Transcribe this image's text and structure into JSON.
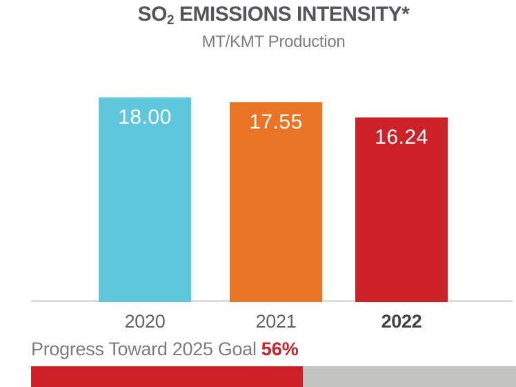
{
  "title": {
    "prefix": "SO",
    "subscript": "2",
    "suffix": " EMISSIONS INTENSITY*"
  },
  "subtitle": "MT/KMT Production",
  "chart_data": {
    "type": "bar",
    "title": "SO2 EMISSIONS INTENSITY*",
    "subtitle": "MT/KMT Production",
    "xlabel": "",
    "ylabel": "MT/KMT Production",
    "categories": [
      "2020",
      "2021",
      "2022"
    ],
    "values": [
      18.0,
      17.55,
      16.24
    ],
    "value_labels": [
      "18.00",
      "17.55",
      "16.24"
    ],
    "bar_colors": [
      "#5EC7DB",
      "#E87424",
      "#CC2127"
    ],
    "ylim": [
      0,
      18.3
    ],
    "grid": false,
    "legend": false,
    "highlight_category": "2022"
  },
  "progress": {
    "label": "Progress Toward 2025 Goal",
    "value_label": "56%",
    "percent": 56,
    "fill_color": "#CC2127",
    "track_color": "#C3C3C1"
  },
  "colors": {
    "background": "#FFFFFF",
    "title_text": "#54555A",
    "subtitle_text": "#7B7C7F",
    "axis_line": "#DEDEDE",
    "tick_text": "#606164",
    "tick_text_highlight": "#414245",
    "bar_value_text": "#FFFFFF"
  }
}
